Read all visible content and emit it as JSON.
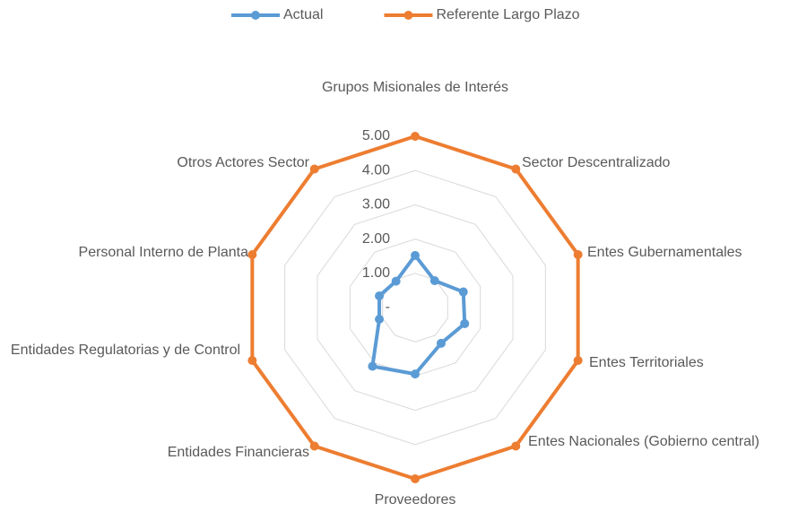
{
  "chart_data": {
    "type": "radar",
    "categories": [
      "Grupos Misionales de Interés",
      "Sector Descentralizado",
      "Entes Gubernamentales",
      "Entes Territoriales",
      "Entes Nacionales (Gobierno central)",
      "Proveedores",
      "Entidades Financieras",
      "Entidades Regulatorias y de Control",
      "Personal Interno de Planta",
      "Otros Actores Sector"
    ],
    "series": [
      {
        "name": "Actual",
        "color": "#5b9bd5",
        "values": [
          1.52,
          0.97,
          1.48,
          1.52,
          1.29,
          1.94,
          2.12,
          1.1,
          1.1,
          0.95
        ]
      },
      {
        "name": "Referente Largo Plazo",
        "color": "#ed7d31",
        "values": [
          5,
          5,
          5,
          5,
          5,
          5,
          5,
          5,
          5,
          5
        ]
      }
    ],
    "ylim": [
      0,
      5
    ],
    "yticks": [
      {
        "value": 0,
        "label": "-"
      },
      {
        "value": 1,
        "label": "1.00"
      },
      {
        "value": 2,
        "label": "2.00"
      },
      {
        "value": 3,
        "label": "3.00"
      },
      {
        "value": 4,
        "label": "4.00"
      },
      {
        "value": 5,
        "label": "5.00"
      }
    ],
    "grid": true,
    "legend": "top"
  }
}
